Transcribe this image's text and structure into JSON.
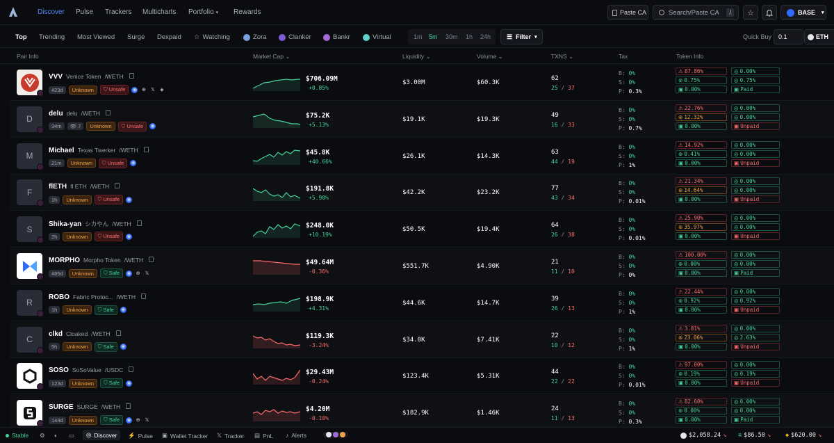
{
  "nav": {
    "links": [
      "Discover",
      "Pulse",
      "Trackers",
      "Multicharts",
      "Portfolio",
      "Rewards"
    ],
    "paste_ca": "Paste CA",
    "search_placeholder": "Search/Paste CA",
    "search_key": "/",
    "chain": "BASE"
  },
  "filters": {
    "tabs": [
      "Top",
      "Trending",
      "Most Viewed",
      "Surge",
      "Dexpaid"
    ],
    "watching": "Watching",
    "launchpads": [
      "Zora",
      "Clanker",
      "Bankr",
      "Virtual"
    ],
    "timeframes": [
      "1m",
      "5m",
      "30m",
      "1h",
      "24h"
    ],
    "filter_label": "Filter",
    "quick_buy_label": "Quick Buy",
    "quick_buy_value": "0.1",
    "quick_buy_unit": "ETH"
  },
  "columns": [
    "Pair Info",
    "Market Cap",
    "Liquidity",
    "Volume",
    "TXNS",
    "Tax",
    "Token Info"
  ],
  "colors": {
    "accent": "#4f8cff",
    "up": "#46d39a",
    "down": "#ff6b6b",
    "warn": "#f0a24b"
  },
  "rows": [
    {
      "sym": "VVV",
      "name": "Venice Token",
      "pair": "/WETH",
      "avatar": "",
      "age": "423d",
      "views": "",
      "risk": "Unknown",
      "safety": "Unsafe",
      "mc": "$706.09M",
      "chg": "+0.85%",
      "liq": "$3.00M",
      "vol": "$60.3K",
      "tx": "62",
      "buys": "25",
      "sells": "37",
      "b": "0%",
      "s": "0%",
      "p": "0.3%",
      "ti": [
        "87.86%",
        "0.00%",
        "0.75%",
        "0.75%",
        "0.00%",
        "Paid"
      ]
    },
    {
      "sym": "delu",
      "name": "delu",
      "pair": "/WETH",
      "avatar": "D",
      "age": "34m",
      "views": "7",
      "risk": "Unknown",
      "safety": "Unsafe",
      "mc": "$75.2K",
      "chg": "+5.13%",
      "liq": "$19.1K",
      "vol": "$19.3K",
      "tx": "49",
      "buys": "16",
      "sells": "33",
      "b": "0%",
      "s": "0%",
      "p": "0.7%",
      "ti": [
        "22.76%",
        "0.00%",
        "12.32%",
        "0.00%",
        "0.00%",
        "Unpaid"
      ]
    },
    {
      "sym": "Michael",
      "name": "Texas Twerker",
      "pair": "/WETH",
      "avatar": "M",
      "age": "21m",
      "views": "",
      "risk": "Unknown",
      "safety": "Unsafe",
      "mc": "$45.8K",
      "chg": "+40.66%",
      "liq": "$26.1K",
      "vol": "$14.3K",
      "tx": "63",
      "buys": "44",
      "sells": "19",
      "b": "0%",
      "s": "0%",
      "p": "1%",
      "ti": [
        "14.92%",
        "0.00%",
        "0.41%",
        "0.00%",
        "0.00%",
        "Unpaid"
      ]
    },
    {
      "sym": "flETH",
      "name": "fl ETH",
      "pair": "/WETH",
      "avatar": "F",
      "age": "1h",
      "views": "",
      "risk": "Unknown",
      "safety": "Unsafe",
      "mc": "$191.8K",
      "chg": "+5.90%",
      "liq": "$42.2K",
      "vol": "$23.2K",
      "tx": "77",
      "buys": "43",
      "sells": "34",
      "b": "0%",
      "s": "0%",
      "p": "0.01%",
      "ti": [
        "21.34%",
        "0.00%",
        "14.64%",
        "0.00%",
        "0.00%",
        "Unpaid"
      ]
    },
    {
      "sym": "Shika-yan",
      "name": "シカやん",
      "pair": "/WETH",
      "avatar": "S",
      "age": "2h",
      "views": "",
      "risk": "Unknown",
      "safety": "Unsafe",
      "mc": "$248.0K",
      "chg": "+10.19%",
      "liq": "$50.5K",
      "vol": "$19.4K",
      "tx": "64",
      "buys": "26",
      "sells": "38",
      "b": "0%",
      "s": "0%",
      "p": "0.01%",
      "ti": [
        "25.90%",
        "0.00%",
        "35.97%",
        "0.00%",
        "0.00%",
        "Unpaid"
      ]
    },
    {
      "sym": "MORPHO",
      "name": "Morpho Token",
      "pair": "/WETH",
      "avatar": "",
      "age": "485d",
      "views": "",
      "risk": "Unknown",
      "safety": "Safe",
      "mc": "$49.64M",
      "chg": "-0.36%",
      "liq": "$551.7K",
      "vol": "$4.90K",
      "tx": "21",
      "buys": "11",
      "sells": "10",
      "b": "0%",
      "s": "0%",
      "p": "0%",
      "ti": [
        "100.00%",
        "0.00%",
        "0.00%",
        "0.00%",
        "0.00%",
        "Paid"
      ]
    },
    {
      "sym": "ROBO",
      "name": "Fabric Protoc...",
      "pair": "/WETH",
      "avatar": "R",
      "age": "1h",
      "views": "",
      "risk": "Unknown",
      "safety": "Safe",
      "mc": "$198.9K",
      "chg": "+4.31%",
      "liq": "$44.6K",
      "vol": "$14.7K",
      "tx": "39",
      "buys": "26",
      "sells": "13",
      "b": "0%",
      "s": "0%",
      "p": "1%",
      "ti": [
        "22.44%",
        "0.00%",
        "0.92%",
        "0.92%",
        "0.00%",
        "Unpaid"
      ]
    },
    {
      "sym": "clkd",
      "name": "Cloaked",
      "pair": "/WETH",
      "avatar": "C",
      "age": "5h",
      "views": "",
      "risk": "Unknown",
      "safety": "Safe",
      "mc": "$119.3K",
      "chg": "-3.24%",
      "liq": "$34.0K",
      "vol": "$7.41K",
      "tx": "22",
      "buys": "10",
      "sells": "12",
      "b": "0%",
      "s": "0%",
      "p": "1%",
      "ti": [
        "3.81%",
        "0.00%",
        "23.06%",
        "2.63%",
        "0.00%",
        "Unpaid"
      ]
    },
    {
      "sym": "SOSO",
      "name": "SoSoValue",
      "pair": "/USDC",
      "avatar": "",
      "age": "123d",
      "views": "",
      "risk": "Unknown",
      "safety": "Safe",
      "mc": "$29.43M",
      "chg": "-0.24%",
      "liq": "$123.4K",
      "vol": "$5.31K",
      "tx": "44",
      "buys": "22",
      "sells": "22",
      "b": "0%",
      "s": "0%",
      "p": "0.01%",
      "ti": [
        "97.00%",
        "0.00%",
        "0.19%",
        "0.19%",
        "0.00%",
        "Unpaid"
      ]
    },
    {
      "sym": "SURGE",
      "name": "SURGE",
      "pair": "/WETH",
      "avatar": "",
      "age": "144d",
      "views": "",
      "risk": "Unknown",
      "safety": "Safe",
      "mc": "$4.20M",
      "chg": "-0.10%",
      "liq": "$182.9K",
      "vol": "$1.46K",
      "tx": "24",
      "buys": "11",
      "sells": "13",
      "b": "0%",
      "s": "0%",
      "p": "0.3%",
      "ti": [
        "82.60%",
        "0.00%",
        "0.00%",
        "0.00%",
        "0.00%",
        "Paid"
      ]
    }
  ],
  "bottom": {
    "status": "Stable",
    "tabs": [
      "Discover",
      "Pulse",
      "Wallet Tracker",
      "Tracker",
      "PnL",
      "Alerts"
    ],
    "prices": [
      "$2,058.24",
      "$86.50",
      "$620.00"
    ]
  }
}
